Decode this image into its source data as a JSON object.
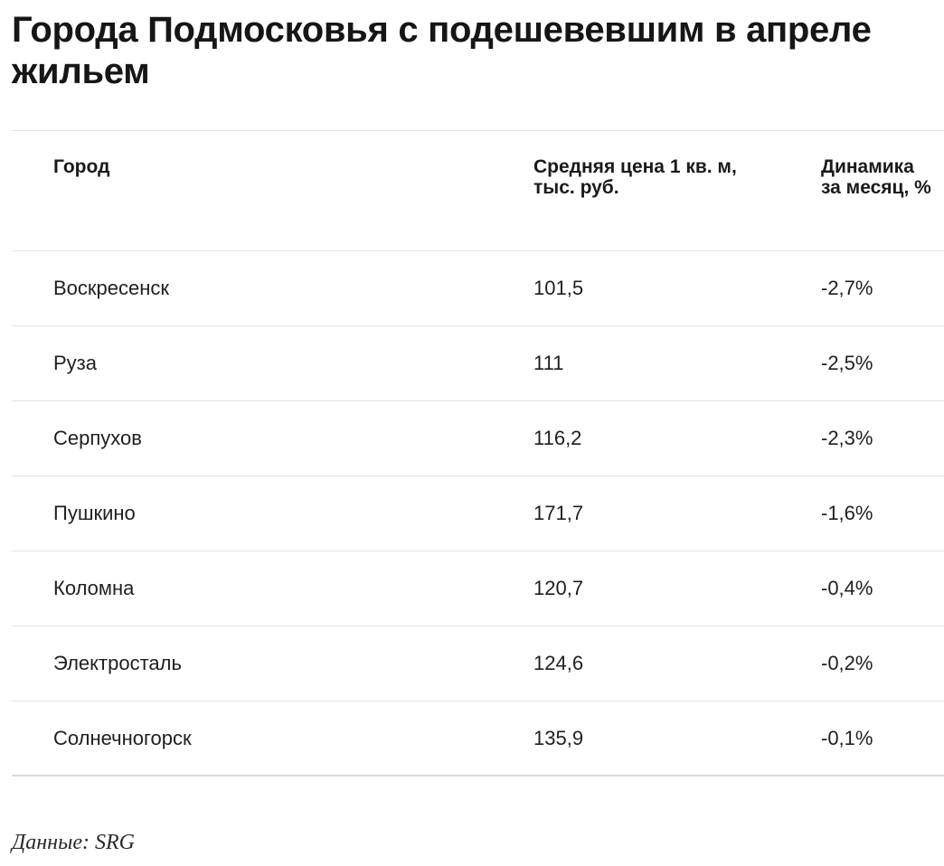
{
  "chart_data": {
    "type": "table",
    "title": "Города Подмосковья с подешевевшим в апреле жильем",
    "columns": [
      "Город",
      "Средняя цена 1 кв. м, тыс. руб.",
      "Динамика за месяц, %"
    ],
    "rows": [
      {
        "city": "Воскресенск",
        "price": "101,5",
        "change": "-2,7%"
      },
      {
        "city": "Руза",
        "price": "111",
        "change": "-2,5%"
      },
      {
        "city": "Серпухов",
        "price": "116,2",
        "change": "-2,3%"
      },
      {
        "city": "Пушкино",
        "price": "171,7",
        "change": "-1,6%"
      },
      {
        "city": "Коломна",
        "price": "120,7",
        "change": "-0,4%"
      },
      {
        "city": "Электросталь",
        "price": "124,6",
        "change": "-0,2%"
      },
      {
        "city": "Солнечногорск",
        "price": "135,9",
        "change": "-0,1%"
      }
    ],
    "source": "Данные: SRG"
  }
}
